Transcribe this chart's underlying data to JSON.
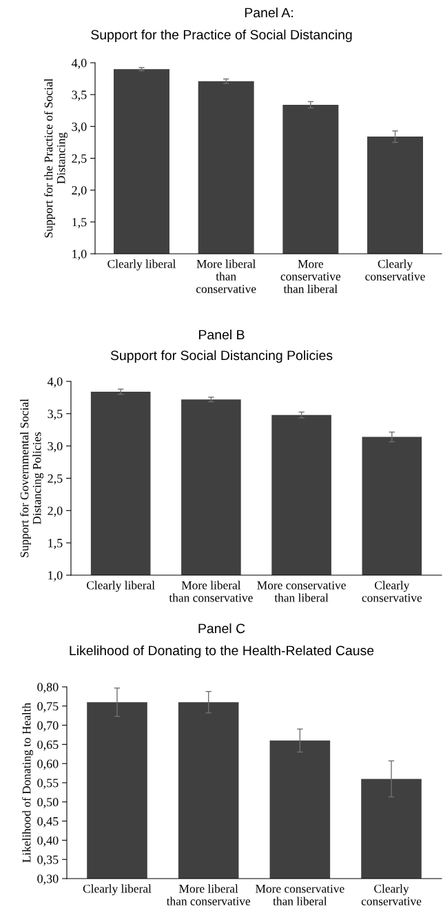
{
  "chart_data": [
    {
      "type": "bar",
      "title": "Panel A:",
      "subtitle": "Support for the Practice of Social Distancing",
      "ylabel": "Support for the Practice of Social\nDistancing",
      "categories": [
        "Clearly liberal",
        "More liberal\nthan\nconservative",
        "More\nconservative\nthan liberal",
        "Clearly\nconservative"
      ],
      "values": [
        3.9,
        3.71,
        3.34,
        2.84
      ],
      "errors": [
        0.025,
        0.035,
        0.05,
        0.09
      ],
      "color": "#404040",
      "ylim": [
        1,
        4
      ],
      "yticks": [
        {
          "value": 1,
          "label": "1,0"
        },
        {
          "value": 1.5,
          "label": "1,5"
        },
        {
          "value": 2,
          "label": "2,0"
        },
        {
          "value": 2.5,
          "label": "2,5"
        },
        {
          "value": 3,
          "label": "3,0"
        },
        {
          "value": 3.5,
          "label": "3,5"
        },
        {
          "value": 4,
          "label": "4,0"
        }
      ],
      "grid": false
    },
    {
      "type": "bar",
      "title": "Panel B",
      "subtitle": "Support for Social Distancing Policies",
      "ylabel": "Support for Governmental Social\nDistancing Policies",
      "categories": [
        "Clearly liberal",
        "More liberal\nthan conservative",
        "More conservative\nthan liberal",
        "Clearly\nconservative"
      ],
      "values": [
        3.84,
        3.72,
        3.48,
        3.14
      ],
      "errors": [
        0.04,
        0.035,
        0.045,
        0.075
      ],
      "color": "#404040",
      "ylim": [
        1,
        4
      ],
      "yticks": [
        {
          "value": 1,
          "label": "1,0"
        },
        {
          "value": 1.5,
          "label": "1,5"
        },
        {
          "value": 2,
          "label": "2,0"
        },
        {
          "value": 2.5,
          "label": "2,5"
        },
        {
          "value": 3,
          "label": "3,0"
        },
        {
          "value": 3.5,
          "label": "3,5"
        },
        {
          "value": 4,
          "label": "4,0"
        }
      ],
      "grid": false
    },
    {
      "type": "bar",
      "title": "Panel C",
      "subtitle": "Likelihood of Donating to the Health-Related Cause",
      "ylabel": "Likelihood of Donating to Health",
      "categories": [
        "Clearly liberal",
        "More liberal\nthan conservative",
        "More conservative\nthan liberal",
        "Clearly\nconservative"
      ],
      "values": [
        0.76,
        0.76,
        0.66,
        0.56
      ],
      "errors": [
        0.037,
        0.028,
        0.03,
        0.047
      ],
      "color": "#404040",
      "ylim": [
        0.3,
        0.8
      ],
      "yticks": [
        {
          "value": 0.3,
          "label": "0,30"
        },
        {
          "value": 0.35,
          "label": "0,35"
        },
        {
          "value": 0.4,
          "label": "0,40"
        },
        {
          "value": 0.45,
          "label": "0,45"
        },
        {
          "value": 0.5,
          "label": "0,50"
        },
        {
          "value": 0.55,
          "label": "0,55"
        },
        {
          "value": 0.6,
          "label": "0,60"
        },
        {
          "value": 0.65,
          "label": "0,65"
        },
        {
          "value": 0.7,
          "label": "0,70"
        },
        {
          "value": 0.75,
          "label": "0,75"
        },
        {
          "value": 0.8,
          "label": "0,80"
        }
      ],
      "grid": false
    }
  ]
}
